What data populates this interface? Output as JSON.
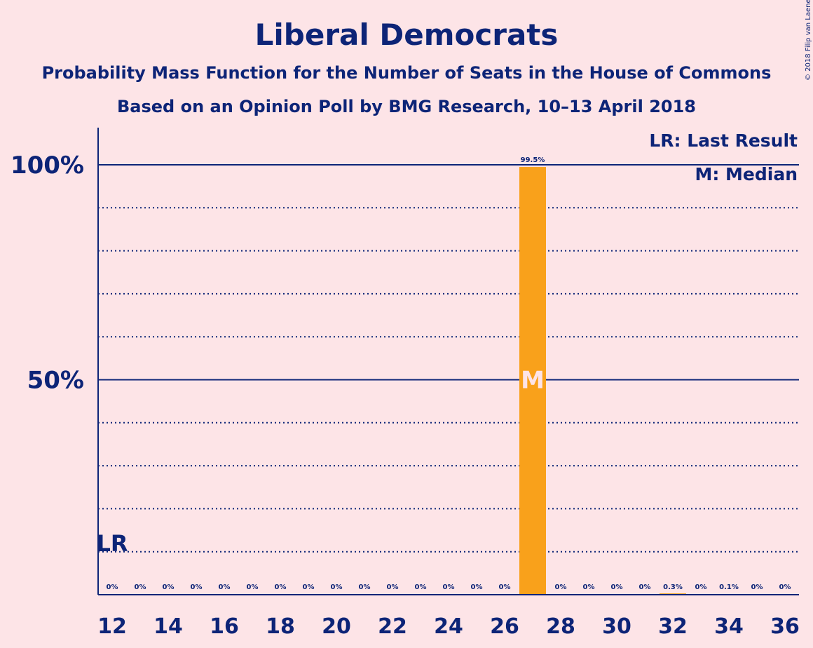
{
  "chart_data": {
    "type": "bar",
    "title": "Liberal Democrats",
    "subtitle": "Probability Mass Function for the Number of Seats in the House of Commons",
    "subtitle2": "Based on an Opinion Poll by BMG Research, 10–13 April 2018",
    "copyright": "© 2018 Filip van Laenen",
    "legend": [
      "LR: Last Result",
      "M: Median"
    ],
    "legend_placement": "top-right",
    "x": [
      12,
      13,
      14,
      15,
      16,
      17,
      18,
      19,
      20,
      21,
      22,
      23,
      24,
      25,
      26,
      27,
      28,
      29,
      30,
      31,
      32,
      33,
      34,
      35,
      36
    ],
    "values": [
      0,
      0,
      0,
      0,
      0,
      0,
      0,
      0,
      0,
      0,
      0,
      0,
      0,
      0,
      0,
      99.5,
      0,
      0,
      0,
      0,
      0.3,
      0,
      0.1,
      0,
      0
    ],
    "data_labels": [
      "0%",
      "0%",
      "0%",
      "0%",
      "0%",
      "0%",
      "0%",
      "0%",
      "0%",
      "0%",
      "0%",
      "0%",
      "0%",
      "0%",
      "0%",
      "99.5%",
      "0%",
      "0%",
      "0%",
      "0%",
      "0.3%",
      "0%",
      "0.1%",
      "0%",
      "0%"
    ],
    "x_tick_labels": [
      "12",
      "14",
      "16",
      "18",
      "20",
      "22",
      "24",
      "26",
      "28",
      "30",
      "32",
      "34",
      "36"
    ],
    "y_tick_labels": [
      {
        "value": 50,
        "label": "50%"
      },
      {
        "value": 100,
        "label": "100%"
      }
    ],
    "ylim": [
      0,
      108
    ],
    "grid": "dotted every 10%, solid at 50% and 100%",
    "last_result_seats": 12,
    "last_result_label": "LR",
    "median_seats": 27,
    "median_label": "M",
    "bar_color": "#f9a11b",
    "axis_color": "#0d2477",
    "background_color": "#fde4e7"
  }
}
